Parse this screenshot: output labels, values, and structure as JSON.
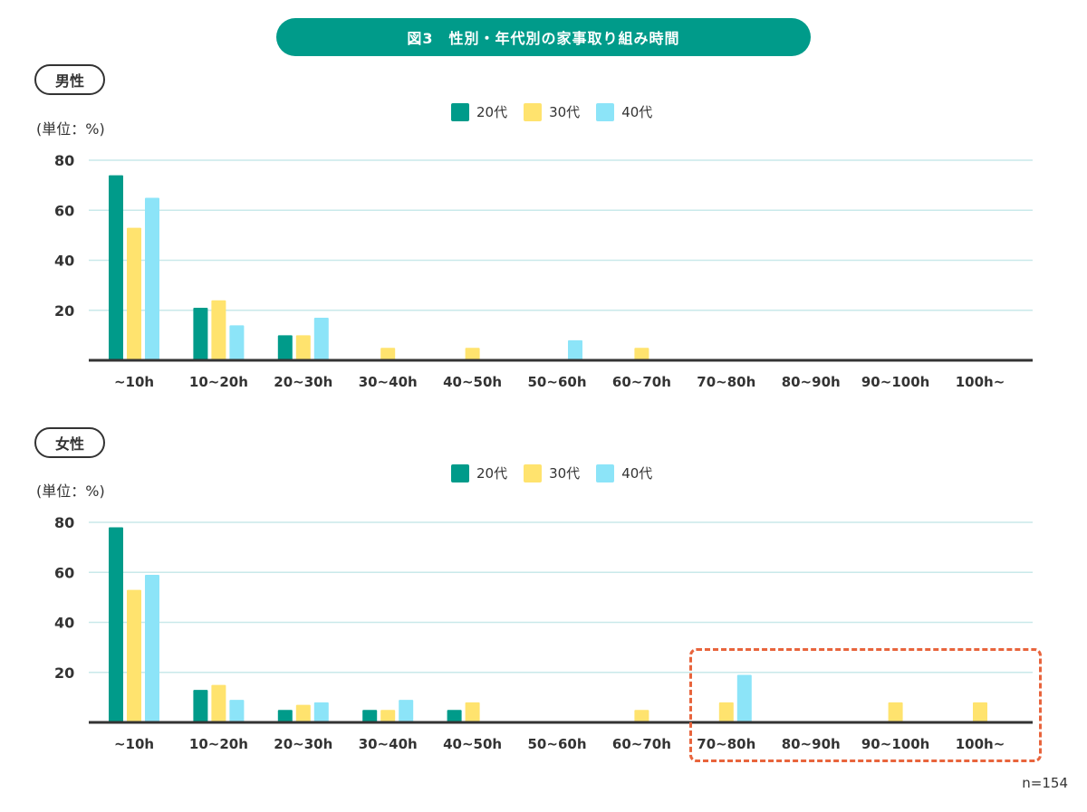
{
  "title": "図3　性別・年代別の家事取り組み時間",
  "n_label": "n=154",
  "colors": {
    "teal": "#009b8a",
    "yellow": "#ffe36e",
    "skyblue": "#8ce4f8",
    "highlight": "#e8643c"
  },
  "chart_data": [
    {
      "type": "bar",
      "section_label": "男性",
      "unit_label": "(単位：%)",
      "categories": [
        "~10h",
        "10~20h",
        "20~30h",
        "30~40h",
        "40~50h",
        "50~60h",
        "60~70h",
        "70~80h",
        "80~90h",
        "90~100h",
        "100h~"
      ],
      "yticks": [
        "80",
        "60",
        "40",
        "20"
      ],
      "ylim": [
        0,
        80
      ],
      "series": [
        {
          "name": "20代",
          "color": "#009b8a",
          "values": [
            74,
            21,
            10,
            0,
            0,
            0,
            0,
            0,
            0,
            0,
            0
          ]
        },
        {
          "name": "30代",
          "color": "#ffe36e",
          "values": [
            53,
            24,
            10,
            5,
            5,
            0,
            5,
            0,
            0,
            0,
            0
          ]
        },
        {
          "name": "40代",
          "color": "#8ce4f8",
          "values": [
            65,
            14,
            17,
            0,
            0,
            8,
            0,
            0,
            0,
            0,
            0
          ]
        }
      ]
    },
    {
      "type": "bar",
      "section_label": "女性",
      "unit_label": "(単位：%)",
      "categories": [
        "~10h",
        "10~20h",
        "20~30h",
        "30~40h",
        "40~50h",
        "50~60h",
        "60~70h",
        "70~80h",
        "80~90h",
        "90~100h",
        "100h~"
      ],
      "yticks": [
        "80",
        "60",
        "40",
        "20"
      ],
      "ylim": [
        0,
        80
      ],
      "series": [
        {
          "name": "20代",
          "color": "#009b8a",
          "values": [
            78,
            13,
            5,
            5,
            5,
            0,
            0,
            0,
            0,
            0,
            0
          ]
        },
        {
          "name": "30代",
          "color": "#ffe36e",
          "values": [
            53,
            15,
            7,
            5,
            8,
            0,
            5,
            8,
            0,
            8,
            8
          ]
        },
        {
          "name": "40代",
          "color": "#8ce4f8",
          "values": [
            59,
            9,
            8,
            9,
            0,
            0,
            0,
            19,
            0,
            0,
            0
          ]
        }
      ]
    }
  ]
}
